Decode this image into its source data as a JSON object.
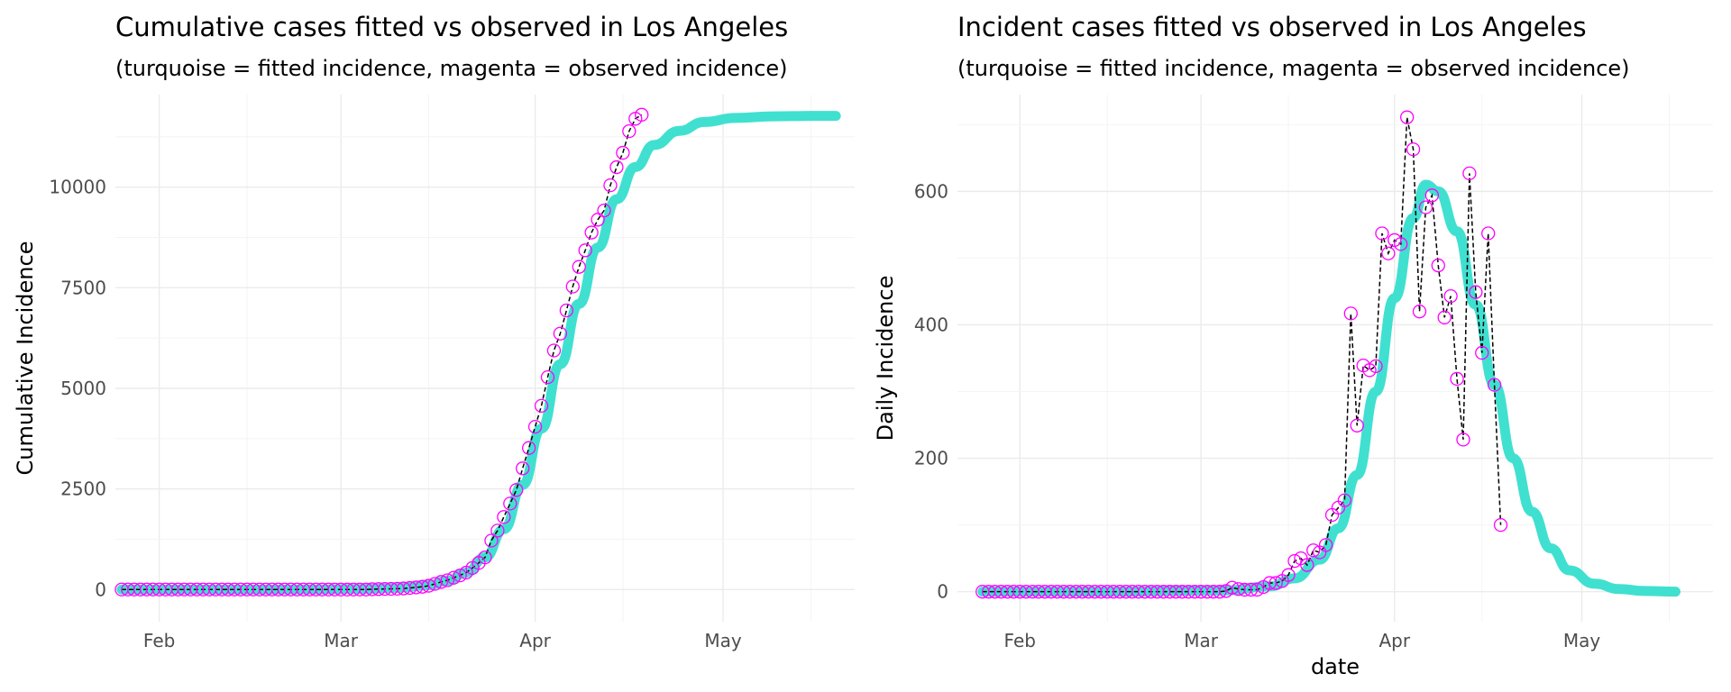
{
  "chart_data": [
    {
      "type": "line",
      "title": "Cumulative cases fitted vs observed in Los Angeles",
      "subtitle": "(turquoise = fitted incidence, magenta = observed incidence)",
      "xlabel": "",
      "ylabel": "Cumulative Incidence",
      "x_ticks": [
        "Feb",
        "Mar",
        "Apr",
        "May"
      ],
      "y_ticks": [
        "0",
        "2500",
        "5000",
        "7500",
        "10000"
      ],
      "xlim": [
        "2020-01-25",
        "2020-05-22"
      ],
      "ylim": [
        -800,
        12300
      ],
      "grid": true,
      "colors": {
        "fitted": "#40E0D0",
        "observed": "#FF00FF",
        "connector": "#000000"
      },
      "series": [
        {
          "name": "fitted",
          "style": "thick-line",
          "x": [
            "2020-01-26",
            "2020-02-05",
            "2020-02-15",
            "2020-02-25",
            "2020-03-05",
            "2020-03-10",
            "2020-03-15",
            "2020-03-18",
            "2020-03-21",
            "2020-03-24",
            "2020-03-27",
            "2020-03-30",
            "2020-04-02",
            "2020-04-05",
            "2020-04-08",
            "2020-04-11",
            "2020-04-14",
            "2020-04-17",
            "2020-04-20",
            "2020-04-24",
            "2020-04-28",
            "2020-05-03",
            "2020-05-09",
            "2020-05-15",
            "2020-05-19"
          ],
          "y": [
            0,
            0,
            0,
            2,
            15,
            40,
            110,
            220,
            420,
            800,
            1500,
            2600,
            4000,
            5600,
            7100,
            8500,
            9700,
            10500,
            11050,
            11400,
            11620,
            11720,
            11760,
            11770,
            11770
          ]
        },
        {
          "name": "observed",
          "style": "open-circles-dashed",
          "x": [
            "2020-01-26",
            "2020-01-27",
            "2020-01-28",
            "2020-01-29",
            "2020-01-30",
            "2020-01-31",
            "2020-02-01",
            "2020-02-02",
            "2020-02-03",
            "2020-02-04",
            "2020-02-05",
            "2020-02-06",
            "2020-02-07",
            "2020-02-08",
            "2020-02-09",
            "2020-02-10",
            "2020-02-11",
            "2020-02-12",
            "2020-02-13",
            "2020-02-14",
            "2020-02-15",
            "2020-02-16",
            "2020-02-17",
            "2020-02-18",
            "2020-02-19",
            "2020-02-20",
            "2020-02-21",
            "2020-02-22",
            "2020-02-23",
            "2020-02-24",
            "2020-02-25",
            "2020-02-26",
            "2020-02-27",
            "2020-02-28",
            "2020-02-29",
            "2020-03-01",
            "2020-03-02",
            "2020-03-03",
            "2020-03-04",
            "2020-03-05",
            "2020-03-06",
            "2020-03-07",
            "2020-03-08",
            "2020-03-09",
            "2020-03-10",
            "2020-03-11",
            "2020-03-12",
            "2020-03-13",
            "2020-03-14",
            "2020-03-15",
            "2020-03-16",
            "2020-03-17",
            "2020-03-18",
            "2020-03-19",
            "2020-03-20",
            "2020-03-21",
            "2020-03-22",
            "2020-03-23",
            "2020-03-24",
            "2020-03-25",
            "2020-03-26",
            "2020-03-27",
            "2020-03-28",
            "2020-03-29",
            "2020-03-30",
            "2020-03-31",
            "2020-04-01",
            "2020-04-02",
            "2020-04-03",
            "2020-04-04",
            "2020-04-05",
            "2020-04-06",
            "2020-04-07",
            "2020-04-08",
            "2020-04-09",
            "2020-04-10",
            "2020-04-11",
            "2020-04-12",
            "2020-04-13",
            "2020-04-14",
            "2020-04-15",
            "2020-04-16",
            "2020-04-17",
            "2020-04-18"
          ],
          "y": [
            0,
            0,
            0,
            0,
            0,
            0,
            0,
            0,
            0,
            0,
            0,
            0,
            0,
            0,
            0,
            0,
            0,
            0,
            0,
            0,
            0,
            0,
            0,
            0,
            0,
            0,
            0,
            0,
            0,
            0,
            0,
            0,
            0,
            0,
            0,
            0,
            0,
            0,
            0,
            1,
            7,
            11,
            14,
            17,
            20,
            27,
            40,
            53,
            69,
            94,
            140,
            190,
            230,
            292,
            351,
            421,
            536,
            662,
            799,
            1216,
            1465,
            1804,
            2136,
            2474,
            3011,
            3518,
            4045,
            4566,
            5277,
            5940,
            6360,
            6936,
            7530,
            8019,
            8430,
            8873,
            9192,
            9420,
            10047,
            10496,
            10854,
            11391,
            11700,
            11800
          ]
        }
      ]
    },
    {
      "type": "line",
      "title": "Incident cases fitted vs observed in Los Angeles",
      "subtitle": "(turquoise = fitted incidence, magenta = observed incidence)",
      "xlabel": "date",
      "ylabel": "Daily Incidence",
      "x_ticks": [
        "Feb",
        "Mar",
        "Apr",
        "May"
      ],
      "y_ticks": [
        "0",
        "200",
        "400",
        "600"
      ],
      "xlim": [
        "2020-01-22",
        "2020-05-22"
      ],
      "ylim": [
        -45,
        745
      ],
      "grid": true,
      "colors": {
        "fitted": "#40E0D0",
        "observed": "#FF00FF",
        "connector": "#000000"
      },
      "series": [
        {
          "name": "fitted",
          "style": "thick-line",
          "x": [
            "2020-01-26",
            "2020-02-15",
            "2020-03-05",
            "2020-03-12",
            "2020-03-16",
            "2020-03-20",
            "2020-03-23",
            "2020-03-26",
            "2020-03-29",
            "2020-04-01",
            "2020-04-04",
            "2020-04-06",
            "2020-04-08",
            "2020-04-11",
            "2020-04-14",
            "2020-04-17",
            "2020-04-20",
            "2020-04-23",
            "2020-04-26",
            "2020-04-29",
            "2020-05-03",
            "2020-05-07",
            "2020-05-11",
            "2020-05-16"
          ],
          "y": [
            0,
            0,
            2,
            8,
            20,
            48,
            95,
            175,
            300,
            440,
            560,
            610,
            600,
            540,
            430,
            310,
            200,
            120,
            65,
            32,
            12,
            4,
            1,
            0
          ]
        },
        {
          "name": "observed",
          "style": "open-circles-dashed",
          "x": [
            "2020-01-26",
            "2020-01-27",
            "2020-01-28",
            "2020-01-29",
            "2020-01-30",
            "2020-01-31",
            "2020-02-01",
            "2020-02-02",
            "2020-02-03",
            "2020-02-04",
            "2020-02-05",
            "2020-02-06",
            "2020-02-07",
            "2020-02-08",
            "2020-02-09",
            "2020-02-10",
            "2020-02-11",
            "2020-02-12",
            "2020-02-13",
            "2020-02-14",
            "2020-02-15",
            "2020-02-16",
            "2020-02-17",
            "2020-02-18",
            "2020-02-19",
            "2020-02-20",
            "2020-02-21",
            "2020-02-22",
            "2020-02-23",
            "2020-02-24",
            "2020-02-25",
            "2020-02-26",
            "2020-02-27",
            "2020-02-28",
            "2020-02-29",
            "2020-03-01",
            "2020-03-02",
            "2020-03-03",
            "2020-03-04",
            "2020-03-05",
            "2020-03-06",
            "2020-03-07",
            "2020-03-08",
            "2020-03-09",
            "2020-03-10",
            "2020-03-11",
            "2020-03-12",
            "2020-03-13",
            "2020-03-14",
            "2020-03-15",
            "2020-03-16",
            "2020-03-17",
            "2020-03-18",
            "2020-03-19",
            "2020-03-20",
            "2020-03-21",
            "2020-03-22",
            "2020-03-23",
            "2020-03-24",
            "2020-03-25",
            "2020-03-26",
            "2020-03-27",
            "2020-03-28",
            "2020-03-29",
            "2020-03-30",
            "2020-03-31",
            "2020-04-01",
            "2020-04-02",
            "2020-04-03",
            "2020-04-04",
            "2020-04-05",
            "2020-04-06",
            "2020-04-07",
            "2020-04-08",
            "2020-04-09",
            "2020-04-10",
            "2020-04-11",
            "2020-04-12",
            "2020-04-13",
            "2020-04-14",
            "2020-04-15",
            "2020-04-16",
            "2020-04-17",
            "2020-04-18"
          ],
          "y": [
            0,
            0,
            0,
            0,
            0,
            0,
            0,
            0,
            0,
            0,
            0,
            0,
            0,
            0,
            0,
            0,
            0,
            0,
            0,
            0,
            0,
            0,
            0,
            0,
            0,
            0,
            0,
            0,
            0,
            0,
            0,
            0,
            0,
            0,
            0,
            0,
            0,
            0,
            0,
            1,
            6,
            4,
            3,
            3,
            3,
            7,
            13,
            13,
            16,
            25,
            46,
            50,
            40,
            62,
            59,
            70,
            115,
            126,
            137,
            417,
            249,
            339,
            332,
            338,
            537,
            507,
            527,
            521,
            711,
            663,
            420,
            576,
            594,
            489,
            411,
            443,
            319,
            228,
            627,
            449,
            358,
            537,
            310,
            100
          ]
        }
      ]
    }
  ]
}
